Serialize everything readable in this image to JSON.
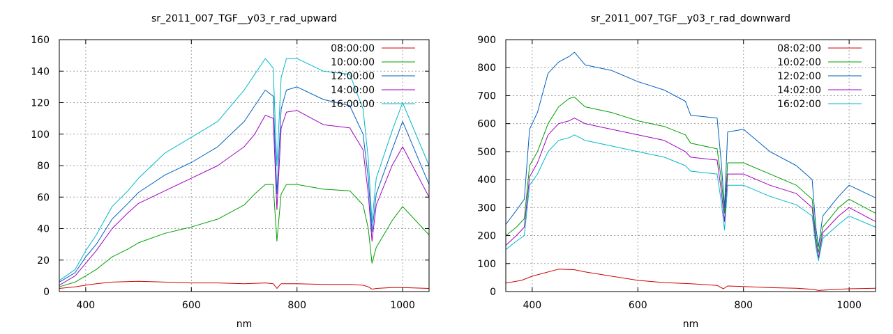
{
  "chart_data": [
    {
      "type": "line",
      "title": "sr_2011_007_TGF__y03_r_rad_upward",
      "xlabel": "nm",
      "ylabel": "",
      "xlim": [
        350,
        1050
      ],
      "ylim": [
        0,
        160
      ],
      "xticks": [
        400,
        600,
        800,
        1000
      ],
      "yticks": [
        0,
        20,
        40,
        60,
        80,
        100,
        120,
        140,
        160
      ],
      "grid": true,
      "legend": "top-right",
      "series": [
        {
          "name": "08:00:00",
          "color": "#d00000",
          "x": [
            350,
            380,
            400,
            420,
            450,
            500,
            550,
            600,
            650,
            700,
            740,
            755,
            762,
            770,
            800,
            850,
            900,
            925,
            935,
            942,
            950,
            980,
            1000,
            1050
          ],
          "y": [
            2,
            3,
            4,
            5,
            6,
            6.5,
            6,
            5.5,
            5.5,
            5,
            5.5,
            5,
            2,
            5,
            5,
            4.5,
            4.5,
            4,
            3,
            1.5,
            2,
            2.5,
            2.5,
            2
          ]
        },
        {
          "name": "10:00:00",
          "color": "#00a000",
          "x": [
            350,
            380,
            400,
            420,
            450,
            480,
            500,
            550,
            600,
            650,
            700,
            720,
            740,
            755,
            762,
            770,
            780,
            800,
            850,
            900,
            925,
            935,
            942,
            950,
            980,
            1000,
            1050
          ],
          "y": [
            3,
            6,
            10,
            14,
            22,
            27,
            31,
            37,
            41,
            46,
            55,
            62,
            68,
            68,
            32,
            62,
            68,
            68,
            65,
            64,
            55,
            40,
            18,
            28,
            45,
            54,
            36
          ]
        },
        {
          "name": "12:00:00",
          "color": "#0060c0",
          "x": [
            350,
            380,
            400,
            420,
            450,
            480,
            500,
            550,
            600,
            650,
            700,
            720,
            740,
            755,
            762,
            770,
            780,
            800,
            850,
            900,
            925,
            935,
            942,
            950,
            980,
            1000,
            1050
          ],
          "y": [
            6,
            12,
            22,
            30,
            46,
            56,
            63,
            74,
            82,
            92,
            108,
            118,
            128,
            124,
            62,
            116,
            128,
            130,
            122,
            118,
            100,
            72,
            38,
            62,
            90,
            108,
            68
          ]
        },
        {
          "name": "14:00:00",
          "color": "#a000c0",
          "x": [
            350,
            380,
            400,
            420,
            450,
            480,
            500,
            550,
            600,
            650,
            700,
            720,
            740,
            755,
            762,
            770,
            780,
            800,
            850,
            900,
            925,
            935,
            942,
            950,
            980,
            1000,
            1050
          ],
          "y": [
            4,
            10,
            18,
            26,
            40,
            50,
            56,
            64,
            72,
            80,
            92,
            100,
            112,
            110,
            52,
            104,
            114,
            115,
            106,
            104,
            90,
            62,
            32,
            55,
            80,
            92,
            60
          ]
        },
        {
          "name": "16:00:00",
          "color": "#00b8c8",
          "x": [
            350,
            380,
            400,
            420,
            450,
            480,
            500,
            550,
            600,
            650,
            700,
            720,
            740,
            755,
            762,
            770,
            780,
            800,
            850,
            900,
            925,
            935,
            942,
            950,
            980,
            1000,
            1050
          ],
          "y": [
            7,
            14,
            26,
            36,
            54,
            64,
            72,
            88,
            98,
            108,
            128,
            138,
            148,
            142,
            80,
            136,
            148,
            148,
            140,
            138,
            116,
            84,
            44,
            72,
            102,
            120,
            80
          ]
        }
      ]
    },
    {
      "type": "line",
      "title": "sr_2011_007_TGF__y03_r_rad_downward",
      "xlabel": "nm",
      "ylabel": "",
      "xlim": [
        350,
        1050
      ],
      "ylim": [
        0,
        900
      ],
      "xticks": [
        400,
        600,
        800,
        1000
      ],
      "yticks": [
        0,
        100,
        200,
        300,
        400,
        500,
        600,
        700,
        800,
        900
      ],
      "grid": true,
      "legend": "top-right",
      "series": [
        {
          "name": "08:02:00",
          "color": "#d00000",
          "x": [
            350,
            380,
            400,
            420,
            450,
            480,
            500,
            550,
            600,
            650,
            700,
            750,
            762,
            770,
            800,
            850,
            900,
            930,
            942,
            950,
            980,
            1000,
            1050
          ],
          "y": [
            30,
            40,
            55,
            65,
            80,
            78,
            70,
            55,
            40,
            32,
            28,
            22,
            10,
            20,
            18,
            14,
            12,
            8,
            4,
            5,
            8,
            10,
            12
          ]
        },
        {
          "name": "10:02:00",
          "color": "#00a000",
          "x": [
            350,
            370,
            385,
            395,
            410,
            430,
            450,
            470,
            480,
            500,
            550,
            600,
            650,
            690,
            700,
            750,
            758,
            764,
            770,
            800,
            850,
            900,
            930,
            937,
            942,
            950,
            980,
            1000,
            1050
          ],
          "y": [
            200,
            230,
            260,
            450,
            500,
            600,
            660,
            690,
            695,
            660,
            640,
            610,
            590,
            560,
            530,
            510,
            400,
            280,
            460,
            460,
            420,
            380,
            330,
            200,
            140,
            230,
            300,
            330,
            280
          ]
        },
        {
          "name": "12:02:00",
          "color": "#0060c0",
          "x": [
            350,
            370,
            385,
            395,
            410,
            430,
            450,
            470,
            480,
            500,
            550,
            600,
            650,
            690,
            700,
            750,
            758,
            764,
            770,
            800,
            850,
            900,
            930,
            937,
            942,
            950,
            980,
            1000,
            1050
          ],
          "y": [
            240,
            290,
            330,
            580,
            640,
            780,
            820,
            840,
            855,
            810,
            790,
            750,
            720,
            680,
            630,
            620,
            460,
            300,
            570,
            580,
            500,
            450,
            400,
            230,
            160,
            270,
            340,
            380,
            335
          ]
        },
        {
          "name": "14:02:00",
          "color": "#a000c0",
          "x": [
            350,
            370,
            385,
            395,
            410,
            430,
            450,
            470,
            480,
            500,
            550,
            600,
            650,
            690,
            700,
            750,
            758,
            764,
            770,
            800,
            850,
            900,
            930,
            937,
            942,
            950,
            980,
            1000,
            1050
          ],
          "y": [
            165,
            200,
            230,
            410,
            460,
            560,
            600,
            610,
            620,
            600,
            580,
            560,
            540,
            500,
            480,
            470,
            360,
            250,
            420,
            420,
            380,
            350,
            300,
            180,
            120,
            210,
            270,
            300,
            250
          ]
        },
        {
          "name": "16:02:00",
          "color": "#00b8c8",
          "x": [
            350,
            370,
            385,
            395,
            410,
            430,
            450,
            470,
            480,
            500,
            550,
            600,
            650,
            690,
            700,
            750,
            758,
            764,
            770,
            800,
            850,
            900,
            930,
            937,
            942,
            950,
            980,
            1000,
            1050
          ],
          "y": [
            150,
            180,
            200,
            380,
            420,
            500,
            540,
            550,
            560,
            540,
            520,
            500,
            480,
            450,
            430,
            420,
            320,
            220,
            380,
            380,
            340,
            310,
            270,
            160,
            110,
            190,
            240,
            270,
            230
          ]
        }
      ]
    }
  ]
}
